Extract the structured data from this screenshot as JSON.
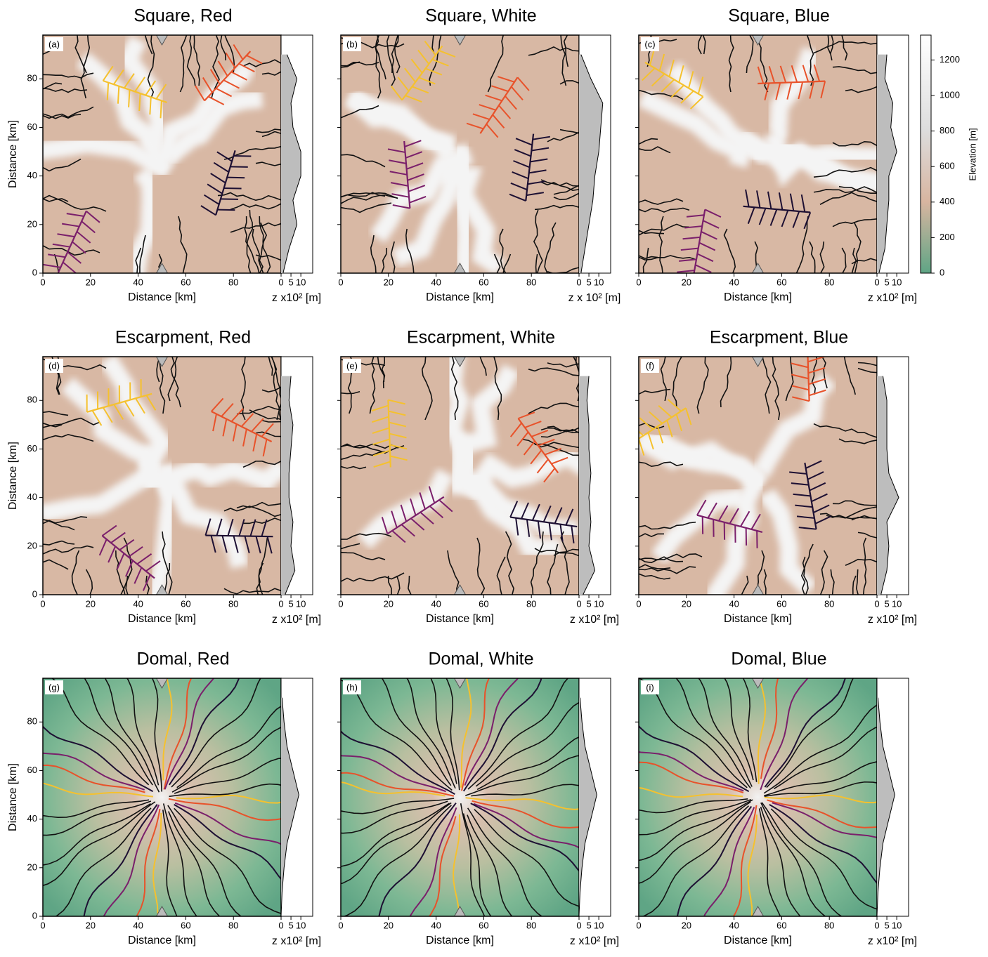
{
  "chart_data": [
    {
      "type": "map",
      "title": "Square, Red",
      "label": "(a)",
      "xlabel": "Distance [km]",
      "ylabel": "Distance [km]",
      "xlim": [
        0,
        100
      ],
      "ylim": [
        0,
        98
      ],
      "xticks": [
        0,
        20,
        40,
        60,
        80
      ],
      "yticks": [
        0,
        20,
        40,
        60,
        80
      ],
      "profile": {
        "xlabel": "z x10² [m]",
        "xlim": [
          0,
          16
        ],
        "xticks": [
          0,
          5,
          10
        ],
        "y": [
          0,
          10,
          20,
          30,
          40,
          50,
          60,
          70,
          80,
          90
        ],
        "z": [
          1,
          4,
          8,
          6,
          10,
          10,
          6,
          5,
          8,
          3
        ]
      }
    },
    {
      "type": "map",
      "title": "Square, White",
      "label": "(b)",
      "xlabel": "Distance [km]",
      "xlim": [
        0,
        100
      ],
      "ylim": [
        0,
        98
      ],
      "xticks": [
        0,
        20,
        40,
        60,
        80
      ],
      "yticks": [
        0,
        20,
        40,
        60,
        80
      ],
      "profile": {
        "xlabel": "z x 10² [m]",
        "xlim": [
          0,
          16
        ],
        "xticks": [
          0,
          5,
          10
        ],
        "y": [
          0,
          10,
          20,
          30,
          40,
          50,
          60,
          70,
          80,
          90
        ],
        "z": [
          1,
          3,
          5,
          7,
          8,
          10,
          11,
          12,
          6,
          1
        ]
      }
    },
    {
      "type": "map",
      "title": "Square, Blue",
      "label": "(c)",
      "xlabel": "Distance [km]",
      "xlim": [
        0,
        100
      ],
      "ylim": [
        0,
        98
      ],
      "xticks": [
        0,
        20,
        40,
        60,
        80
      ],
      "yticks": [
        0,
        20,
        40,
        60,
        80
      ],
      "profile": {
        "xlabel": "z x10² [m]",
        "xlim": [
          0,
          16
        ],
        "xticks": [
          0,
          5,
          10
        ],
        "y": [
          0,
          10,
          20,
          30,
          40,
          50,
          60,
          70,
          80,
          90
        ],
        "z": [
          1,
          4,
          5,
          6,
          6,
          10,
          7,
          8,
          4,
          5
        ]
      }
    },
    {
      "type": "map",
      "title": "Escarpment, Red",
      "label": "(d)",
      "xlabel": "Distance [km]",
      "ylabel": "Distance [km]",
      "xlim": [
        0,
        100
      ],
      "ylim": [
        0,
        98
      ],
      "xticks": [
        0,
        20,
        40,
        60,
        80
      ],
      "yticks": [
        0,
        20,
        40,
        60,
        80
      ],
      "profile": {
        "xlabel": "z x10² [m]",
        "xlim": [
          0,
          16
        ],
        "xticks": [
          0,
          5,
          10
        ],
        "y": [
          0,
          10,
          20,
          30,
          40,
          50,
          60,
          70,
          80,
          90
        ],
        "z": [
          2,
          7,
          5,
          6,
          4,
          4,
          5,
          6,
          4,
          5
        ]
      }
    },
    {
      "type": "map",
      "title": "Escarpment, White",
      "label": "(e)",
      "xlabel": "Distance [km]",
      "xlim": [
        0,
        100
      ],
      "ylim": [
        0,
        98
      ],
      "xticks": [
        0,
        20,
        40,
        60,
        80
      ],
      "yticks": [
        0,
        20,
        40,
        60,
        80
      ],
      "profile": {
        "xlabel": "z x10² [m]",
        "xlim": [
          0,
          16
        ],
        "xticks": [
          0,
          5,
          10
        ],
        "y": [
          0,
          10,
          20,
          30,
          40,
          50,
          60,
          70,
          80,
          90
        ],
        "z": [
          2,
          8,
          5,
          6,
          5,
          6,
          5,
          5,
          4,
          5
        ]
      }
    },
    {
      "type": "map",
      "title": "Escarpment, Blue",
      "label": "(f)",
      "xlabel": "Distance [km]",
      "xlim": [
        0,
        100
      ],
      "ylim": [
        0,
        98
      ],
      "xticks": [
        0,
        20,
        40,
        60,
        80
      ],
      "yticks": [
        0,
        20,
        40,
        60,
        80
      ],
      "profile": {
        "xlabel": "z x10² [m]",
        "xlim": [
          0,
          16
        ],
        "xticks": [
          0,
          5,
          10
        ],
        "y": [
          0,
          10,
          20,
          30,
          40,
          50,
          60,
          70,
          80,
          90
        ],
        "z": [
          2,
          5,
          6,
          5,
          11,
          6,
          5,
          5,
          5,
          3
        ]
      }
    },
    {
      "type": "map",
      "title": "Domal, Red",
      "label": "(g)",
      "xlabel": "Distance [km]",
      "ylabel": "Distance [km]",
      "xlim": [
        0,
        100
      ],
      "ylim": [
        0,
        98
      ],
      "xticks": [
        0,
        20,
        40,
        60,
        80
      ],
      "yticks": [
        0,
        20,
        40,
        60,
        80
      ],
      "profile": {
        "xlabel": "z x10² [m]",
        "xlim": [
          0,
          16
        ],
        "xticks": [
          0,
          5,
          10
        ],
        "y": [
          0,
          10,
          20,
          30,
          40,
          50,
          60,
          70,
          80,
          90
        ],
        "z": [
          0,
          0.5,
          1.5,
          3,
          6,
          9,
          6,
          3,
          1.5,
          0.5
        ]
      }
    },
    {
      "type": "map",
      "title": "Domal, White",
      "label": "(h)",
      "xlabel": "Distance [km]",
      "xlim": [
        0,
        100
      ],
      "ylim": [
        0,
        98
      ],
      "xticks": [
        0,
        20,
        40,
        60,
        80
      ],
      "yticks": [
        0,
        20,
        40,
        60,
        80
      ],
      "profile": {
        "xlabel": "z x10² [m]",
        "xlim": [
          0,
          16
        ],
        "xticks": [
          0,
          5,
          10
        ],
        "y": [
          0,
          10,
          20,
          30,
          40,
          50,
          60,
          70,
          80,
          90
        ],
        "z": [
          0,
          0.5,
          1.5,
          3,
          6,
          9,
          6,
          3,
          1.5,
          0.5
        ]
      }
    },
    {
      "type": "map",
      "title": "Domal, Blue",
      "label": "(i)",
      "xlabel": "Distance [km]",
      "xlim": [
        0,
        100
      ],
      "ylim": [
        0,
        98
      ],
      "xticks": [
        0,
        20,
        40,
        60,
        80
      ],
      "yticks": [
        0,
        20,
        40,
        60,
        80
      ],
      "profile": {
        "xlabel": "z x10² [m]",
        "xlim": [
          0,
          16
        ],
        "xticks": [
          0,
          5,
          10
        ],
        "y": [
          0,
          10,
          20,
          30,
          40,
          50,
          60,
          70,
          80,
          90
        ],
        "z": [
          0,
          0.5,
          1.5,
          3,
          6,
          9,
          6,
          3,
          1.5,
          0.5
        ]
      }
    }
  ],
  "colorbar": {
    "label": "Elevation [m]",
    "ylim": [
      0,
      1340
    ],
    "yticks": [
      0,
      200,
      400,
      600,
      800,
      1000,
      1200
    ]
  }
}
